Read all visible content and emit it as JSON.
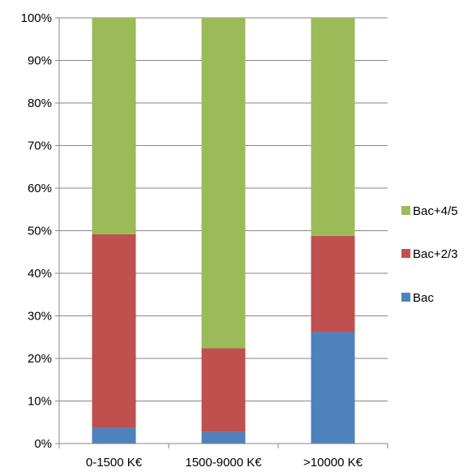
{
  "chart_data": {
    "type": "bar",
    "stacked": true,
    "percent_stacked": true,
    "categories": [
      "0-1500 K€",
      "1500-9000 K€",
      ">10000 K€"
    ],
    "series": [
      {
        "name": "Bac",
        "color": "#4f81bd",
        "values": [
          3.7,
          2.7,
          26.2
        ]
      },
      {
        "name": "Bac+2/3",
        "color": "#c0504d",
        "values": [
          45.5,
          19.7,
          22.6
        ]
      },
      {
        "name": "Bac+4/5",
        "color": "#9bbb59",
        "values": [
          50.8,
          77.6,
          51.2
        ]
      }
    ],
    "ylim": [
      0,
      100
    ],
    "yticks": [
      "0%",
      "10%",
      "20%",
      "30%",
      "40%",
      "50%",
      "60%",
      "70%",
      "80%",
      "90%",
      "100%"
    ],
    "grid": true,
    "legend_position": "right",
    "legend_order": [
      "Bac+4/5",
      "Bac+2/3",
      "Bac"
    ]
  }
}
